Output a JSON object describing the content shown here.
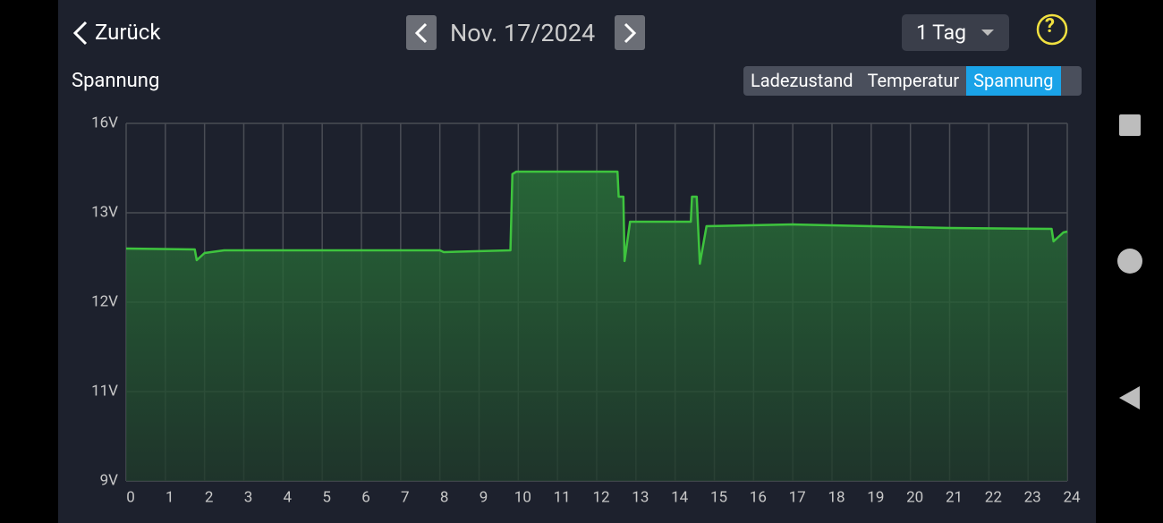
{
  "header": {
    "back": "Zurück",
    "date": "Nov. 17/2024",
    "range": "1 Tag",
    "help": "?"
  },
  "tabs": [
    "Ladezustand",
    "Temperatur",
    "Spannung"
  ],
  "chart_data": {
    "type": "line",
    "title": "Spannung",
    "x": [
      0,
      1.75,
      1.8,
      2,
      2.5,
      8,
      8.1,
      9.8,
      9.85,
      9.95,
      12.53,
      12.56,
      12.68,
      12.71,
      12.85,
      14.4,
      14.43,
      14.55,
      14.63,
      14.8,
      17,
      19,
      21,
      23.6,
      23.65,
      23.9,
      24
    ],
    "series": [
      {
        "name": "Spannung",
        "color": "#3ec43e",
        "values": [
          12.6,
          12.59,
          12.47,
          12.55,
          12.58,
          12.58,
          12.56,
          12.58,
          14.3,
          14.38,
          14.38,
          13.54,
          13.54,
          12.46,
          12.9,
          12.9,
          13.54,
          13.54,
          12.43,
          12.85,
          12.87,
          12.85,
          12.83,
          12.82,
          12.68,
          12.78,
          12.79
        ]
      }
    ],
    "xlim": [
      0,
      24
    ],
    "xticks": [
      0,
      1,
      2,
      3,
      4,
      5,
      6,
      7,
      8,
      9,
      10,
      11,
      12,
      13,
      14,
      15,
      16,
      17,
      18,
      19,
      20,
      21,
      22,
      23,
      24
    ],
    "ylim": [
      9,
      16
    ],
    "yticks": [
      {
        "value": 16,
        "label": "16V"
      },
      {
        "value": 13,
        "label": "13V"
      },
      {
        "value": 12,
        "label": "12V"
      },
      {
        "value": 11,
        "label": "11V"
      },
      {
        "value": 9,
        "label": "9V"
      }
    ],
    "grid": true
  }
}
